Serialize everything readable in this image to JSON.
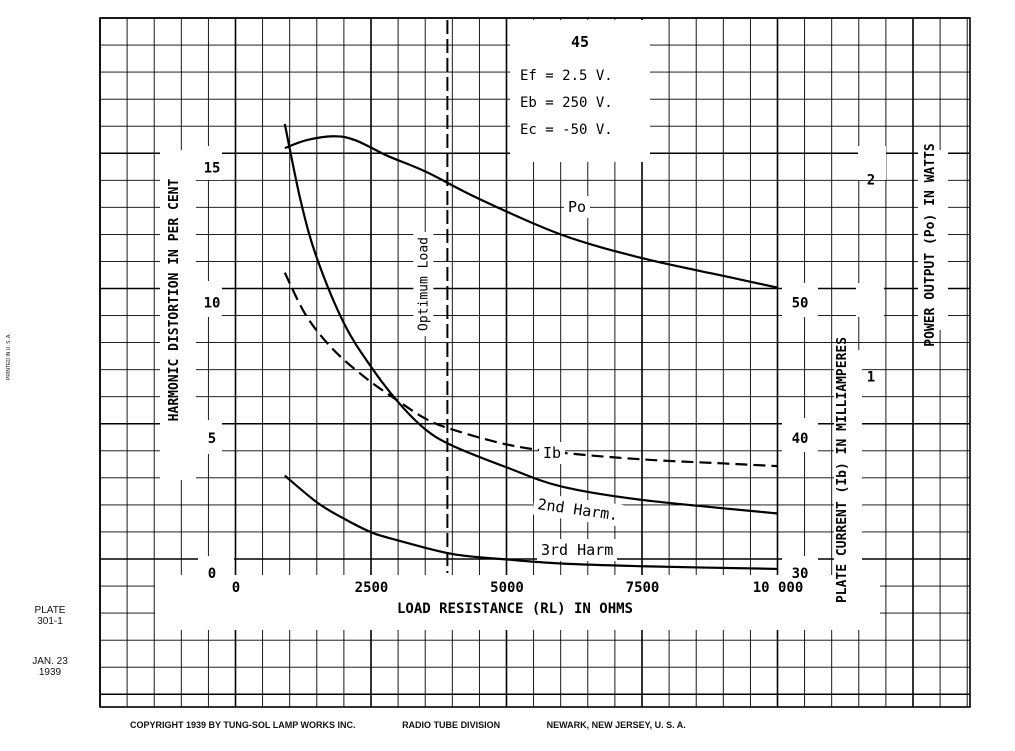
{
  "chart_data": {
    "type": "line",
    "title": "45",
    "conditions": [
      "Ef = 2.5 V.",
      "Eb = 250 V.",
      "Ec = -50 V."
    ],
    "xlabel": "LOAD RESISTANCE (RL) IN OHMS",
    "xlim": [
      0,
      10000
    ],
    "xticks": [
      0,
      2500,
      5000,
      7500,
      10000
    ],
    "xtick_labels": [
      "0",
      "2500",
      "5000",
      "7500",
      "10 000"
    ],
    "y_left": {
      "label": "HARMONIC DISTORTION IN PER CENT",
      "lim": [
        0,
        20
      ],
      "ticks": [
        "0",
        "5",
        "10",
        "15"
      ]
    },
    "y_plate": {
      "label": "PLATE CURRENT (Ib) IN MILLIAMPERES",
      "lim": [
        30,
        70
      ],
      "ticks": [
        "30",
        "40",
        "50"
      ]
    },
    "y_power": {
      "label": "POWER OUTPUT (Po) IN WATTS",
      "lim": [
        0,
        2.75
      ],
      "ticks": [
        "1",
        "2"
      ]
    },
    "optimum_load": {
      "x": 3900,
      "label": "Optimum Load"
    },
    "series": [
      {
        "name": "Po",
        "axis": "power",
        "style": "solid",
        "x": [
          900,
          1300,
          1800,
          2200,
          2800,
          3500,
          4500,
          6000,
          7500,
          9000,
          10000
        ],
        "y": [
          2.16,
          2.2,
          2.22,
          2.2,
          2.12,
          2.04,
          1.9,
          1.72,
          1.6,
          1.51,
          1.45
        ]
      },
      {
        "name": "Ib",
        "axis": "plate",
        "style": "dashed",
        "x": [
          900,
          1300,
          1800,
          2400,
          3000,
          3500,
          4000,
          5000,
          6000,
          7500,
          9000,
          10000
        ],
        "y": [
          52.2,
          49.0,
          46.5,
          44.4,
          42.7,
          41.4,
          40.6,
          39.5,
          38.9,
          38.4,
          38.1,
          37.9
        ]
      },
      {
        "name": "2nd Harm.",
        "axis": "left",
        "style": "solid",
        "x": [
          900,
          1200,
          1500,
          2000,
          2500,
          3000,
          3500,
          4000,
          5000,
          6000,
          7500,
          10000
        ],
        "y": [
          16.6,
          13.7,
          11.6,
          9.2,
          7.6,
          6.3,
          5.3,
          4.7,
          3.9,
          3.2,
          2.7,
          2.2
        ]
      },
      {
        "name": "3rd Harm",
        "axis": "left",
        "style": "solid",
        "x": [
          900,
          1500,
          2000,
          2500,
          3000,
          4000,
          5000,
          6000,
          7500,
          10000
        ],
        "y": [
          3.6,
          2.6,
          2.0,
          1.5,
          1.2,
          0.7,
          0.5,
          0.35,
          0.25,
          0.15
        ]
      }
    ]
  },
  "side": {
    "plate": "PLATE",
    "plate_no": "301-1",
    "date": "JAN. 23",
    "year": "1939",
    "printed": "PRINTED IN U. S. A."
  },
  "footer": {
    "copyright": "COPYRIGHT  1939  BY   TUNG-SOL LAMP WORKS INC.",
    "division": "RADIO TUBE DIVISION",
    "address": "NEWARK, NEW JERSEY, U. S. A."
  }
}
